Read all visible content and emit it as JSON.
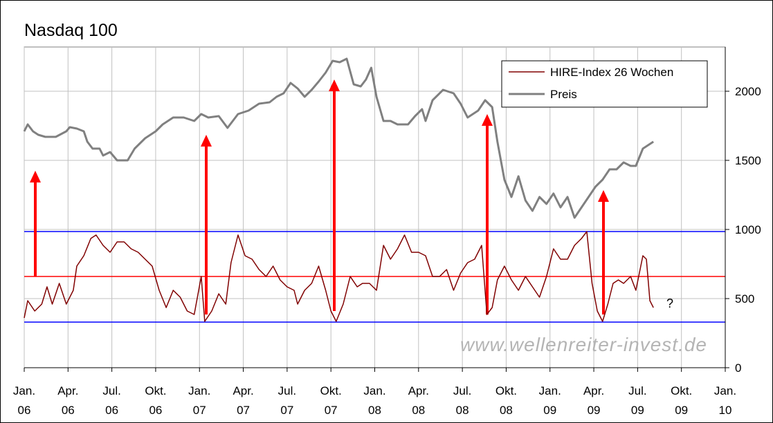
{
  "chart_data": {
    "type": "line",
    "title": "Nasdaq 100",
    "xlim": [
      2006,
      2010
    ],
    "xticks": [
      {
        "value": 2006,
        "label": "Jan.\n06"
      },
      {
        "value": 2006.25,
        "label": "Apr.\n06"
      },
      {
        "value": 2006.5,
        "label": "Jul.\n06"
      },
      {
        "value": 2006.75,
        "label": "Okt.\n06"
      },
      {
        "value": 2007,
        "label": "Jan.\n07"
      },
      {
        "value": 2007.25,
        "label": "Apr.\n07"
      },
      {
        "value": 2007.5,
        "label": "Jul.\n07"
      },
      {
        "value": 2007.75,
        "label": "Okt.\n07"
      },
      {
        "value": 2008,
        "label": "Jan.\n08"
      },
      {
        "value": 2008.25,
        "label": "Apr.\n08"
      },
      {
        "value": 2008.5,
        "label": "Jul.\n08"
      },
      {
        "value": 2008.75,
        "label": "Okt.\n08"
      },
      {
        "value": 2009,
        "label": "Jan.\n09"
      },
      {
        "value": 2009.25,
        "label": "Apr.\n09"
      },
      {
        "value": 2009.5,
        "label": "Jul.\n09"
      },
      {
        "value": 2009.75,
        "label": "Okt.\n09"
      },
      {
        "value": 2010,
        "label": "Jan.\n10"
      }
    ],
    "ylim": [
      0,
      2320
    ],
    "yticks": [
      0,
      500,
      1000,
      1500,
      2000
    ],
    "grid": true,
    "legend": "upper right",
    "reference_lines": [
      {
        "value": 985,
        "color": "#0000ff"
      },
      {
        "value": 660,
        "color": "#ff0000"
      },
      {
        "value": 330,
        "color": "#0000ff"
      }
    ],
    "annotations": [
      "?",
      "www.wellenreiter-invest.de"
    ],
    "series": [
      {
        "name": "HIRE-Index 26 Wochen",
        "color": "#800000",
        "x": [
          2006.0,
          2006.02,
          2006.06,
          2006.08,
          2006.1,
          2006.13,
          2006.16,
          2006.2,
          2006.24,
          2006.28,
          2006.3,
          2006.34,
          2006.38,
          2006.41,
          2006.45,
          2006.49,
          2006.53,
          2006.57,
          2006.61,
          2006.65,
          2006.69,
          2006.73,
          2006.77,
          2006.81,
          2006.85,
          2006.89,
          2006.93,
          2006.97,
          2007.01,
          2007.03,
          2007.07,
          2007.11,
          2007.15,
          2007.18,
          2007.22,
          2007.26,
          2007.3,
          2007.34,
          2007.38,
          2007.42,
          2007.46,
          2007.5,
          2007.54,
          2007.56,
          2007.6,
          2007.64,
          2007.68,
          2007.72,
          2007.75,
          2007.78,
          2007.82,
          2007.86,
          2007.9,
          2007.93,
          2007.97,
          2008.01,
          2008.05,
          2008.09,
          2008.13,
          2008.17,
          2008.21,
          2008.25,
          2008.29,
          2008.33,
          2008.37,
          2008.41,
          2008.45,
          2008.49,
          2008.53,
          2008.57,
          2008.61,
          2008.64,
          2008.67,
          2008.7,
          2008.74,
          2008.78,
          2008.82,
          2008.86,
          2008.9,
          2008.94,
          2008.98,
          2009.02,
          2009.06,
          2009.1,
          2009.14,
          2009.18,
          2009.21,
          2009.24,
          2009.27,
          2009.3,
          2009.33,
          2009.36,
          2009.39,
          2009.42,
          2009.46,
          2009.49,
          2009.53,
          2009.55,
          2009.57,
          2009.59
        ],
        "values": [
          360,
          485,
          410,
          435,
          460,
          585,
          460,
          610,
          460,
          560,
          735,
          810,
          935,
          960,
          885,
          835,
          910,
          910,
          860,
          835,
          785,
          735,
          560,
          435,
          560,
          510,
          410,
          385,
          660,
          335,
          410,
          535,
          460,
          760,
          960,
          810,
          785,
          710,
          660,
          735,
          635,
          585,
          560,
          460,
          560,
          610,
          735,
          560,
          410,
          335,
          460,
          660,
          585,
          610,
          610,
          560,
          885,
          785,
          860,
          960,
          835,
          835,
          810,
          660,
          660,
          710,
          560,
          685,
          760,
          785,
          885,
          385,
          435,
          635,
          735,
          635,
          560,
          660,
          585,
          510,
          660,
          860,
          785,
          785,
          885,
          935,
          985,
          610,
          410,
          335,
          460,
          610,
          635,
          610,
          660,
          560,
          810,
          785,
          485,
          435
        ]
      },
      {
        "name": "Preis",
        "color": "#808080",
        "x": [
          2006.0,
          2006.02,
          2006.05,
          2006.08,
          2006.12,
          2006.18,
          2006.24,
          2006.26,
          2006.3,
          2006.34,
          2006.36,
          2006.39,
          2006.43,
          2006.45,
          2006.49,
          2006.53,
          2006.59,
          2006.63,
          2006.69,
          2006.75,
          2006.79,
          2006.85,
          2006.91,
          2006.97,
          2007.01,
          2007.05,
          2007.11,
          2007.16,
          2007.22,
          2007.28,
          2007.34,
          2007.4,
          2007.44,
          2007.48,
          2007.52,
          2007.56,
          2007.6,
          2007.64,
          2007.68,
          2007.72,
          2007.76,
          2007.8,
          2007.84,
          2007.88,
          2007.92,
          2007.95,
          2007.98,
          2008.01,
          2008.05,
          2008.09,
          2008.13,
          2008.19,
          2008.23,
          2008.27,
          2008.29,
          2008.33,
          2008.39,
          2008.45,
          2008.49,
          2008.53,
          2008.59,
          2008.63,
          2008.67,
          2008.7,
          2008.74,
          2008.78,
          2008.82,
          2008.86,
          2008.9,
          2008.94,
          2008.98,
          2009.02,
          2009.06,
          2009.1,
          2009.14,
          2009.18,
          2009.22,
          2009.26,
          2009.3,
          2009.34,
          2009.38,
          2009.42,
          2009.46,
          2009.49,
          2009.53,
          2009.59
        ],
        "values": [
          1710,
          1760,
          1710,
          1685,
          1670,
          1670,
          1710,
          1740,
          1730,
          1710,
          1635,
          1585,
          1585,
          1535,
          1560,
          1500,
          1500,
          1585,
          1660,
          1710,
          1760,
          1810,
          1810,
          1785,
          1835,
          1810,
          1820,
          1735,
          1835,
          1860,
          1910,
          1920,
          1960,
          1985,
          2060,
          2020,
          1960,
          2010,
          2070,
          2135,
          2220,
          2210,
          2235,
          2050,
          2035,
          2085,
          2170,
          1960,
          1785,
          1785,
          1760,
          1760,
          1820,
          1870,
          1785,
          1935,
          2010,
          1985,
          1910,
          1810,
          1860,
          1935,
          1885,
          1635,
          1360,
          1235,
          1385,
          1210,
          1135,
          1235,
          1185,
          1260,
          1160,
          1235,
          1085,
          1160,
          1235,
          1310,
          1360,
          1435,
          1435,
          1485,
          1460,
          1460,
          1585,
          1635
        ]
      }
    ]
  }
}
